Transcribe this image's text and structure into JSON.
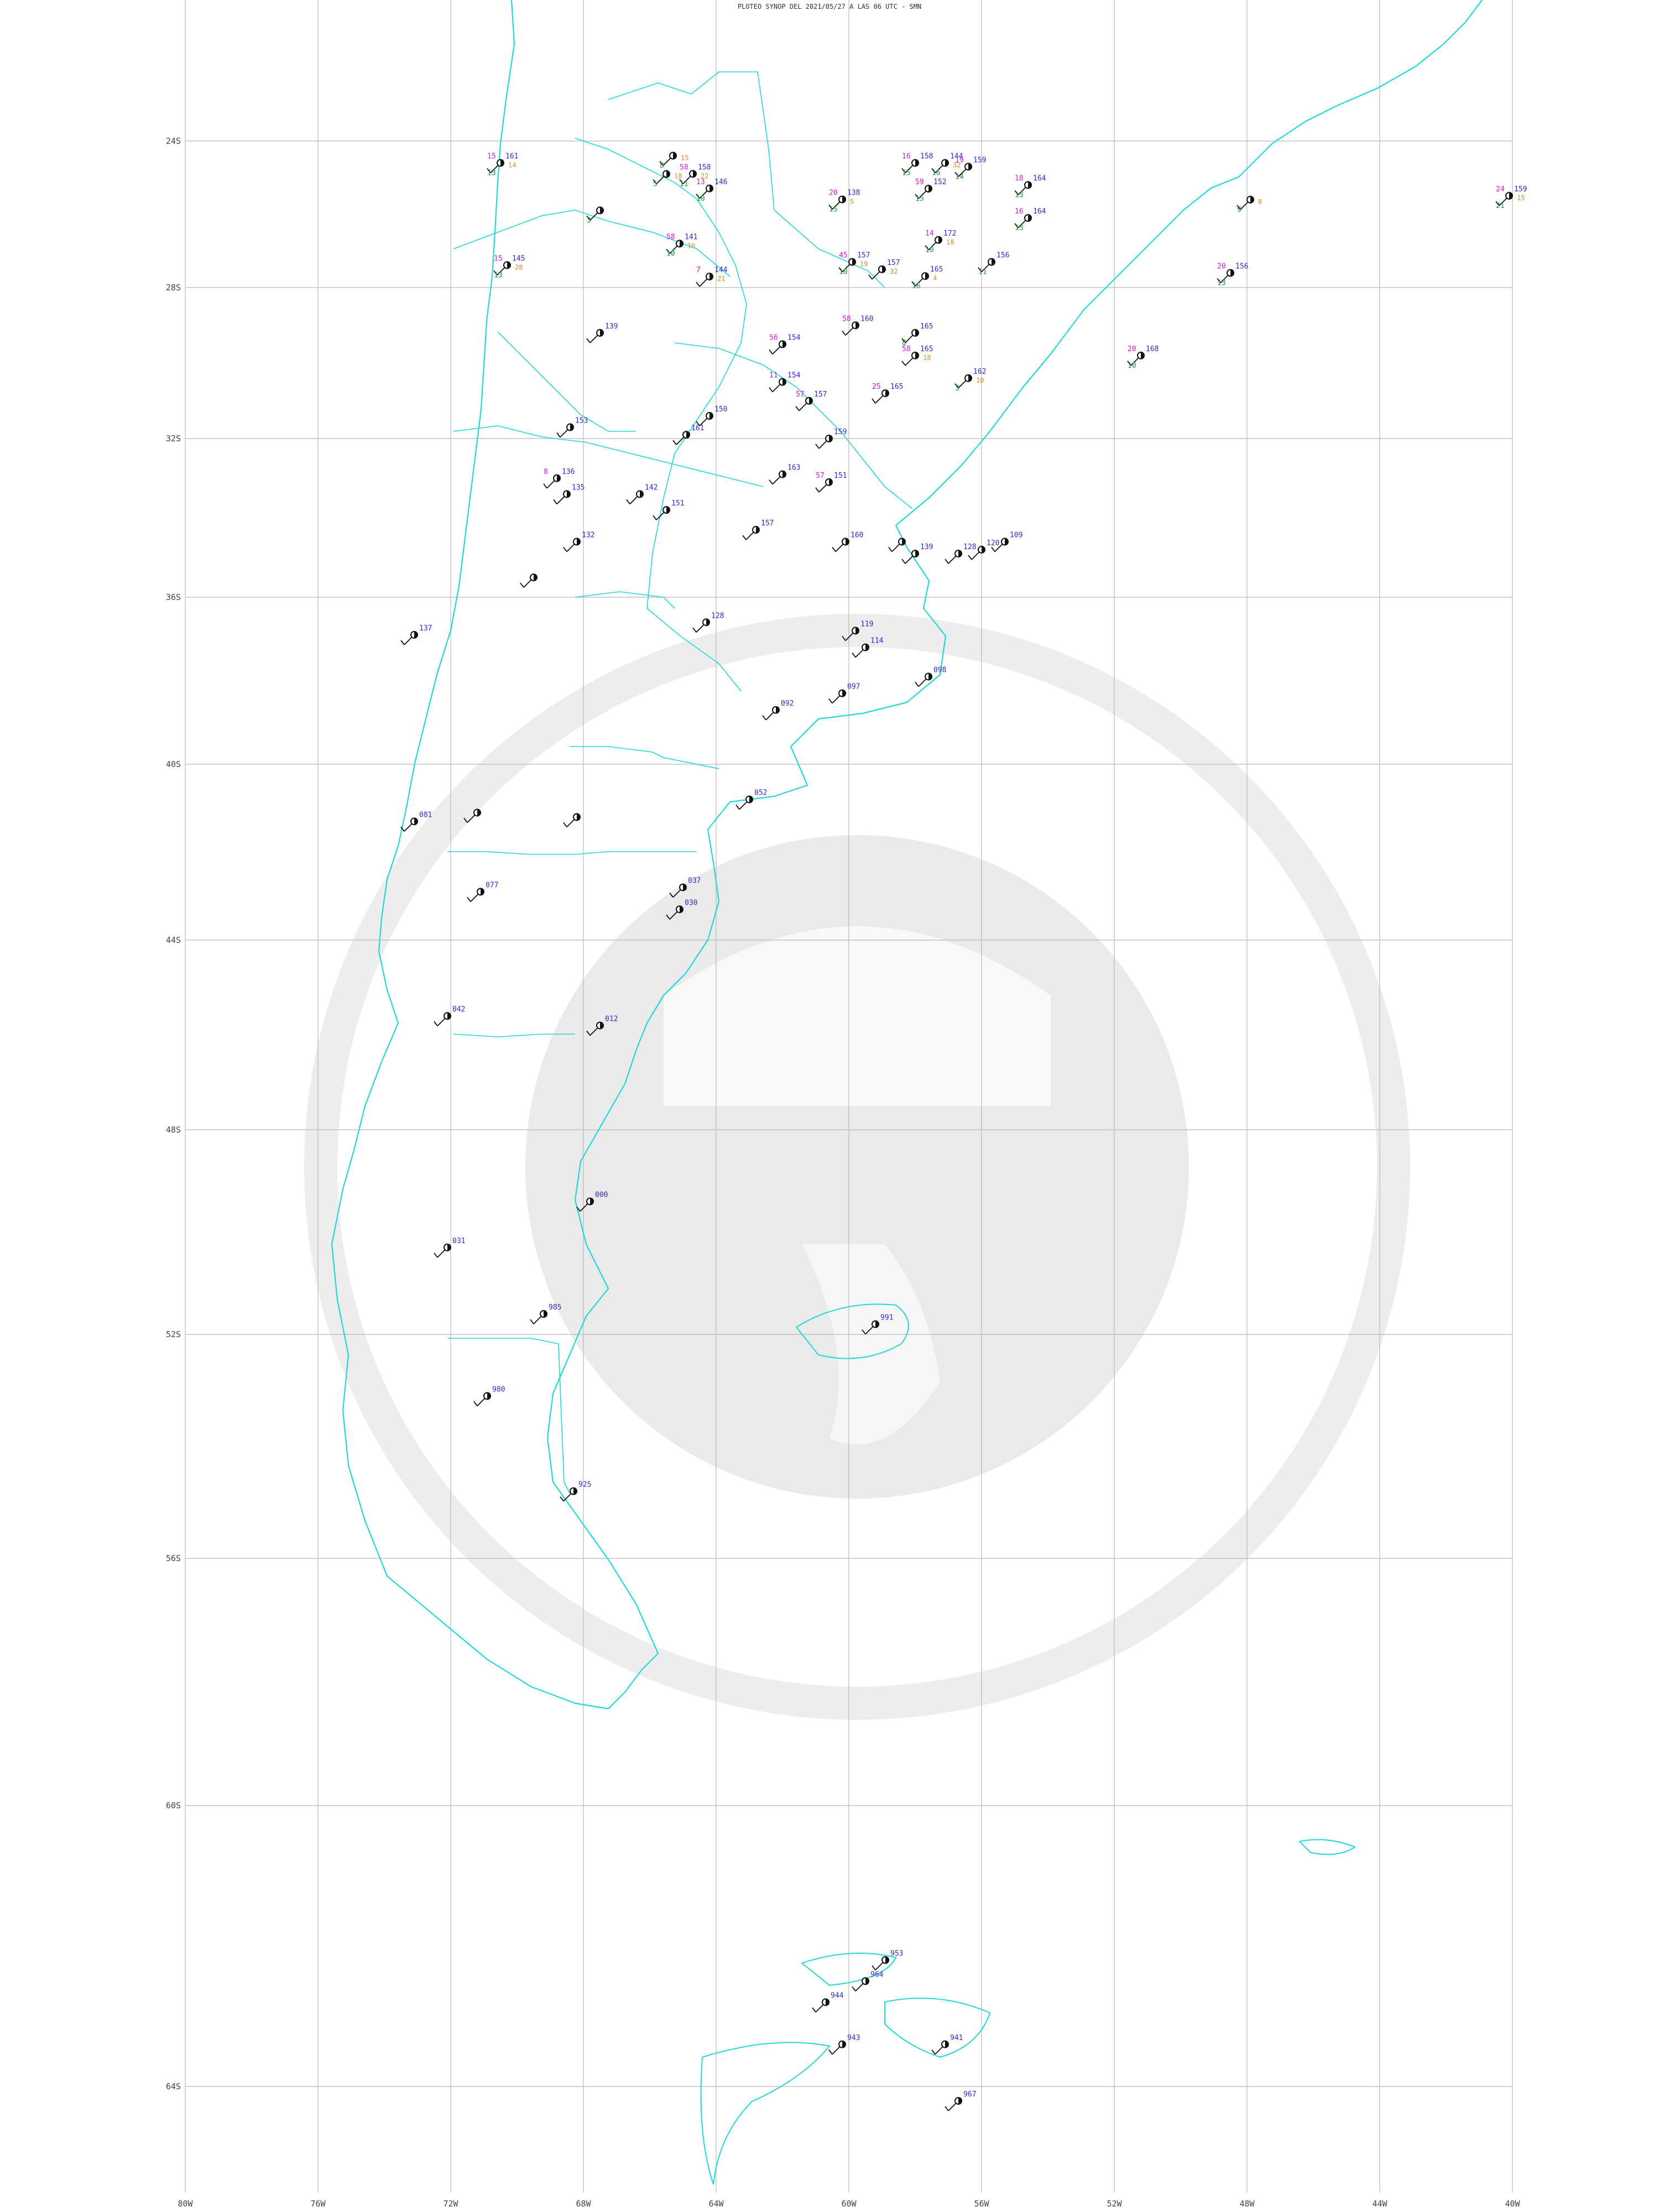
{
  "title": "PLOTEO SYNOP DEL 2021/05/27 A LAS 06 UTC - SMN",
  "colors": {
    "coast": "#20d8dc",
    "grid": "#b9b9b9",
    "pressure": "#2a2ae0",
    "temperature": "#d020d0",
    "dewpoint": "#1a9a3a",
    "weather": "#e08a20"
  },
  "latitude_labels": [
    "24S",
    "28S",
    "32S",
    "36S",
    "40S",
    "44S",
    "48S",
    "52S",
    "56S",
    "60S",
    "64S"
  ],
  "longitude_labels": [
    "80W",
    "76W",
    "72W",
    "68W",
    "64W",
    "60W",
    "56W",
    "52W",
    "48W",
    "44W",
    "40W"
  ],
  "stations": [
    {
      "lat": -20.6,
      "lon": -70.3,
      "p": "145",
      "t": "15",
      "td": "13",
      "ww": "28"
    },
    {
      "lat": -23.4,
      "lon": -70.5,
      "p": "161",
      "t": "15",
      "td": "13",
      "ww": "14"
    },
    {
      "lat": -20.3,
      "lon": -57.7,
      "p": "165",
      "t": "",
      "td": "16",
      "ww": "4"
    },
    {
      "lat": -22.5,
      "lon": -40.1,
      "p": "159",
      "t": "24",
      "td": "21",
      "ww": "15"
    },
    {
      "lat": -22.1,
      "lon": -67.5,
      "p": "",
      "t": "",
      "td": "3",
      "ww": ""
    },
    {
      "lat": -22.7,
      "lon": -64.2,
      "p": "146",
      "t": "13",
      "td": "10",
      "ww": ""
    },
    {
      "lat": -22.4,
      "lon": -60.2,
      "p": "138",
      "t": "20",
      "td": "15",
      "ww": "5"
    },
    {
      "lat": -23.1,
      "lon": -64.7,
      "p": "158",
      "t": "58",
      "td": "11",
      "ww": "22"
    },
    {
      "lat": -23.4,
      "lon": -58.0,
      "p": "158",
      "t": "16",
      "td": "15",
      "ww": ""
    },
    {
      "lat": -23.4,
      "lon": -57.1,
      "p": "144",
      "t": "",
      "td": "16",
      "ww": "32"
    },
    {
      "lat": -24.4,
      "lon": -65.3,
      "p": "",
      "t": "",
      "td": "8",
      "ww": "15"
    },
    {
      "lat": -24.9,
      "lon": -65.5,
      "p": "",
      "t": "",
      "td": "5",
      "ww": "18"
    },
    {
      "lat": -24.7,
      "lon": -56.4,
      "p": "159",
      "t": "19",
      "td": "14",
      "ww": ""
    },
    {
      "lat": -25.3,
      "lon": -57.6,
      "p": "152",
      "t": "59",
      "td": "15",
      "ww": ""
    },
    {
      "lat": -25.2,
      "lon": -54.6,
      "p": "164",
      "t": "18",
      "td": "13",
      "ww": ""
    },
    {
      "lat": -25.6,
      "lon": -47.9,
      "p": "",
      "t": "",
      "td": "9",
      "ww": "8"
    },
    {
      "lat": -26.1,
      "lon": -54.6,
      "p": "164",
      "t": "16",
      "td": "13",
      "ww": ""
    },
    {
      "lat": -26.8,
      "lon": -65.1,
      "p": "141",
      "t": "58",
      "td": "10",
      "ww": "16"
    },
    {
      "lat": -26.7,
      "lon": -57.3,
      "p": "172",
      "t": "14",
      "td": "10",
      "ww": "18"
    },
    {
      "lat": -27.3,
      "lon": -59.9,
      "p": "157",
      "t": "45",
      "td": "10",
      "ww": "19"
    },
    {
      "lat": -27.5,
      "lon": -59.0,
      "p": "157",
      "t": "",
      "td": "",
      "ww": "32"
    },
    {
      "lat": -27.3,
      "lon": -55.7,
      "p": "156",
      "t": "",
      "td": "11",
      "ww": ""
    },
    {
      "lat": -27.7,
      "lon": -64.2,
      "p": "144",
      "t": "7",
      "td": "",
      "ww": "21"
    },
    {
      "lat": -27.6,
      "lon": -48.5,
      "p": "156",
      "t": "20",
      "td": "13",
      "ww": ""
    },
    {
      "lat": -29.2,
      "lon": -67.5,
      "p": "139",
      "t": "",
      "td": "",
      "ww": ""
    },
    {
      "lat": -29.0,
      "lon": -59.8,
      "p": "160",
      "t": "58",
      "td": "",
      "ww": ""
    },
    {
      "lat": -29.2,
      "lon": -58.0,
      "p": "165",
      "t": "",
      "td": "8",
      "ww": ""
    },
    {
      "lat": -29.5,
      "lon": -62.0,
      "p": "154",
      "t": "56",
      "td": "",
      "ww": ""
    },
    {
      "lat": -29.8,
      "lon": -58.0,
      "p": "165",
      "t": "58",
      "td": "",
      "ww": "18"
    },
    {
      "lat": -29.8,
      "lon": -51.2,
      "p": "168",
      "t": "20",
      "td": "10",
      "ww": ""
    },
    {
      "lat": -30.4,
      "lon": -56.4,
      "p": "162",
      "t": "",
      "td": "3",
      "ww": "10"
    },
    {
      "lat": -30.5,
      "lon": -62.0,
      "p": "154",
      "t": "11",
      "td": "",
      "ww": ""
    },
    {
      "lat": -30.8,
      "lon": -58.9,
      "p": "165",
      "t": "25",
      "td": "",
      "ww": ""
    },
    {
      "lat": -31.0,
      "lon": -61.2,
      "p": "157",
      "t": "57",
      "td": "",
      "ww": ""
    },
    {
      "lat": -31.4,
      "lon": -64.2,
      "p": "150",
      "t": "",
      "td": "",
      "ww": ""
    },
    {
      "lat": -31.7,
      "lon": -68.4,
      "p": "153",
      "t": "",
      "td": "",
      "ww": ""
    },
    {
      "lat": -31.9,
      "lon": -64.9,
      "p": "161",
      "t": "",
      "td": "",
      "ww": ""
    },
    {
      "lat": -32.0,
      "lon": -60.6,
      "p": "159",
      "t": "",
      "td": "",
      "ww": ""
    },
    {
      "lat": -32.9,
      "lon": -62.0,
      "p": "163",
      "t": "",
      "td": "",
      "ww": ""
    },
    {
      "lat": -33.0,
      "lon": -68.8,
      "p": "136",
      "t": "8",
      "td": "",
      "ww": ""
    },
    {
      "lat": -33.1,
      "lon": -60.6,
      "p": "151",
      "t": "57",
      "td": "",
      "ww": ""
    },
    {
      "lat": -33.4,
      "lon": -68.5,
      "p": "135",
      "t": "",
      "td": "",
      "ww": ""
    },
    {
      "lat": -33.4,
      "lon": -66.3,
      "p": "142",
      "t": "",
      "td": "",
      "ww": ""
    },
    {
      "lat": -33.8,
      "lon": -65.5,
      "p": "151",
      "t": "",
      "td": "",
      "ww": ""
    },
    {
      "lat": -34.3,
      "lon": -62.8,
      "p": "157",
      "t": "",
      "td": "",
      "ww": ""
    },
    {
      "lat": -34.6,
      "lon": -60.1,
      "p": "160",
      "t": "",
      "td": "",
      "ww": ""
    },
    {
      "lat": -34.6,
      "lon": -68.2,
      "p": "132",
      "t": "",
      "td": "",
      "ww": ""
    },
    {
      "lat": -34.6,
      "lon": -58.4,
      "p": "",
      "t": "",
      "td": "",
      "ww": ""
    },
    {
      "lat": -34.9,
      "lon": -58.0,
      "p": "139",
      "t": "",
      "td": "",
      "ww": ""
    },
    {
      "lat": -34.8,
      "lon": -56.0,
      "p": "120",
      "t": "",
      "td": "",
      "ww": ""
    },
    {
      "lat": -34.9,
      "lon": -56.7,
      "p": "128",
      "t": "",
      "td": "",
      "ww": ""
    },
    {
      "lat": -34.6,
      "lon": -55.3,
      "p": "109",
      "t": "",
      "td": "",
      "ww": ""
    },
    {
      "lat": -35.5,
      "lon": -69.5,
      "p": "",
      "t": "",
      "td": "",
      "ww": ""
    },
    {
      "lat": -36.6,
      "lon": -64.3,
      "p": "128",
      "t": "",
      "td": "",
      "ww": ""
    },
    {
      "lat": -36.9,
      "lon": -73.1,
      "p": "137",
      "t": "",
      "td": "",
      "ww": ""
    },
    {
      "lat": -36.8,
      "lon": -59.8,
      "p": "119",
      "t": "",
      "td": "",
      "ww": ""
    },
    {
      "lat": -37.2,
      "lon": -59.5,
      "p": "114",
      "t": "",
      "td": "",
      "ww": ""
    },
    {
      "lat": -37.9,
      "lon": -57.6,
      "p": "098",
      "t": "",
      "td": "",
      "ww": ""
    },
    {
      "lat": -38.3,
      "lon": -60.2,
      "p": "097",
      "t": "",
      "td": "",
      "ww": ""
    },
    {
      "lat": -38.7,
      "lon": -62.2,
      "p": "092",
      "t": "",
      "td": "",
      "ww": ""
    },
    {
      "lat": -40.8,
      "lon": -63.0,
      "p": "052",
      "t": "",
      "td": "",
      "ww": ""
    },
    {
      "lat": -41.1,
      "lon": -71.2,
      "p": "",
      "t": "",
      "td": "",
      "ww": ""
    },
    {
      "lat": -41.3,
      "lon": -73.1,
      "p": "081",
      "t": "",
      "td": "",
      "ww": ""
    },
    {
      "lat": -41.2,
      "lon": -68.2,
      "p": "",
      "t": "",
      "td": "",
      "ww": ""
    },
    {
      "lat": -42.9,
      "lon": -71.1,
      "p": "077",
      "t": "",
      "td": "",
      "ww": ""
    },
    {
      "lat": -42.8,
      "lon": -65.0,
      "p": "037",
      "t": "",
      "td": "",
      "ww": ""
    },
    {
      "lat": -43.3,
      "lon": -65.1,
      "p": "030",
      "t": "",
      "td": "",
      "ww": ""
    },
    {
      "lat": -45.6,
      "lon": -72.1,
      "p": "042",
      "t": "",
      "td": "",
      "ww": ""
    },
    {
      "lat": -45.8,
      "lon": -67.5,
      "p": "012",
      "t": "",
      "td": "",
      "ww": ""
    },
    {
      "lat": -49.4,
      "lon": -67.8,
      "p": "000",
      "t": "",
      "td": "",
      "ww": ""
    },
    {
      "lat": -50.3,
      "lon": -72.1,
      "p": "031",
      "t": "",
      "td": "",
      "ww": ""
    },
    {
      "lat": -51.6,
      "lon": -69.2,
      "p": "985",
      "t": "",
      "td": "",
      "ww": ""
    },
    {
      "lat": -51.8,
      "lon": -59.2,
      "p": "991",
      "t": "",
      "td": "",
      "ww": ""
    },
    {
      "lat": -53.1,
      "lon": -70.9,
      "p": "980",
      "t": "",
      "td": "",
      "ww": ""
    },
    {
      "lat": -54.8,
      "lon": -68.3,
      "p": "925",
      "t": "",
      "td": "",
      "ww": ""
    },
    {
      "lat": -62.2,
      "lon": -58.9,
      "p": "953",
      "t": "",
      "td": "",
      "ww": ""
    },
    {
      "lat": -62.5,
      "lon": -59.5,
      "p": "964",
      "t": "",
      "td": "",
      "ww": ""
    },
    {
      "lat": -62.8,
      "lon": -60.7,
      "p": "944",
      "t": "",
      "td": "",
      "ww": ""
    },
    {
      "lat": -63.4,
      "lon": -60.2,
      "p": "943",
      "t": "",
      "td": "",
      "ww": ""
    },
    {
      "lat": -63.4,
      "lon": -57.1,
      "p": "941",
      "t": "",
      "td": "",
      "ww": ""
    },
    {
      "lat": -64.2,
      "lon": -56.7,
      "p": "967",
      "t": "",
      "td": "",
      "ww": ""
    }
  ]
}
